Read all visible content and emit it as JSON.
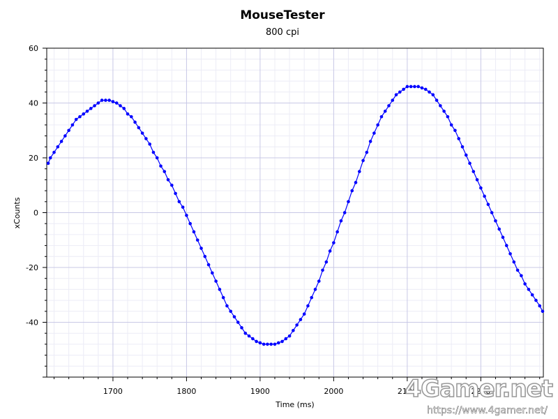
{
  "chart_data": {
    "type": "line",
    "title": "MouseTester",
    "subtitle": "800 cpi",
    "xlabel": "Time (ms)",
    "ylabel": "xCounts",
    "xlim": [
      1610,
      2285
    ],
    "ylim": [
      -60,
      60
    ],
    "x_ticks": [
      1700,
      1800,
      1900,
      2000,
      2100,
      2200
    ],
    "y_ticks": [
      60,
      40,
      20,
      0,
      -20,
      -40
    ],
    "grid": true,
    "legend": "none",
    "series_color": "#0000ff",
    "series": [
      {
        "x": [
          1612,
          1615,
          1620,
          1625,
          1630,
          1635,
          1640,
          1645,
          1650,
          1655,
          1660,
          1665,
          1670,
          1675,
          1680,
          1685,
          1690,
          1695,
          1700,
          1705,
          1710,
          1715,
          1720,
          1725,
          1730,
          1735,
          1740,
          1745,
          1750,
          1755,
          1760,
          1765,
          1770,
          1775,
          1780,
          1785,
          1790,
          1795,
          1800,
          1805,
          1810,
          1815,
          1820,
          1825,
          1830,
          1835,
          1840,
          1845,
          1850,
          1855,
          1860,
          1865,
          1870,
          1875,
          1880,
          1885,
          1890,
          1895,
          1900,
          1905,
          1910,
          1915,
          1920,
          1925,
          1930,
          1935,
          1940,
          1945,
          1950,
          1955,
          1960,
          1965,
          1970,
          1975,
          1980,
          1985,
          1990,
          1995,
          2000,
          2005,
          2010,
          2015,
          2020,
          2025,
          2030,
          2035,
          2040,
          2045,
          2050,
          2055,
          2060,
          2065,
          2070,
          2075,
          2080,
          2085,
          2090,
          2095,
          2100,
          2105,
          2110,
          2115,
          2120,
          2125,
          2130,
          2135,
          2140,
          2145,
          2150,
          2155,
          2160,
          2165,
          2170,
          2175,
          2180,
          2185,
          2190,
          2195,
          2200,
          2205,
          2210,
          2215,
          2220,
          2225,
          2230,
          2235,
          2240,
          2245,
          2250,
          2255,
          2260,
          2265,
          2270,
          2275,
          2280,
          2284
        ],
        "values": [
          18,
          20,
          22,
          24,
          26,
          28,
          30,
          32,
          34,
          35,
          36,
          37,
          38,
          39,
          40,
          41,
          41,
          41,
          40.5,
          40,
          39,
          38,
          36,
          35,
          33,
          31,
          29,
          27,
          25,
          22,
          20,
          17,
          15,
          12,
          10,
          7,
          4,
          2,
          -1,
          -4,
          -7,
          -10,
          -13,
          -16,
          -19,
          -22,
          -25,
          -28,
          -31,
          -34,
          -36,
          -38,
          -40,
          -42,
          -44,
          -45,
          -46,
          -47,
          -47.5,
          -48,
          -48,
          -48,
          -48,
          -47.5,
          -47,
          -46,
          -45,
          -43,
          -41,
          -39,
          -37,
          -34,
          -31,
          -28,
          -25,
          -21,
          -18,
          -14,
          -11,
          -7,
          -3,
          0,
          4,
          8,
          11,
          15,
          19,
          22,
          26,
          29,
          32,
          35,
          37,
          39,
          41,
          43,
          44,
          45,
          46,
          46,
          46,
          46,
          45.5,
          45,
          44,
          43,
          41,
          39,
          37,
          35,
          32,
          30,
          27,
          24,
          21,
          18,
          15,
          12,
          9,
          6,
          3,
          0,
          -3,
          -6,
          -9,
          -12,
          -15,
          -18,
          -21,
          -23,
          -26,
          -28,
          -30,
          -32,
          -34,
          -36
        ]
      }
    ]
  },
  "watermark": {
    "logo": "4Gamer.net",
    "url": "https://www.4gamer.net/"
  }
}
